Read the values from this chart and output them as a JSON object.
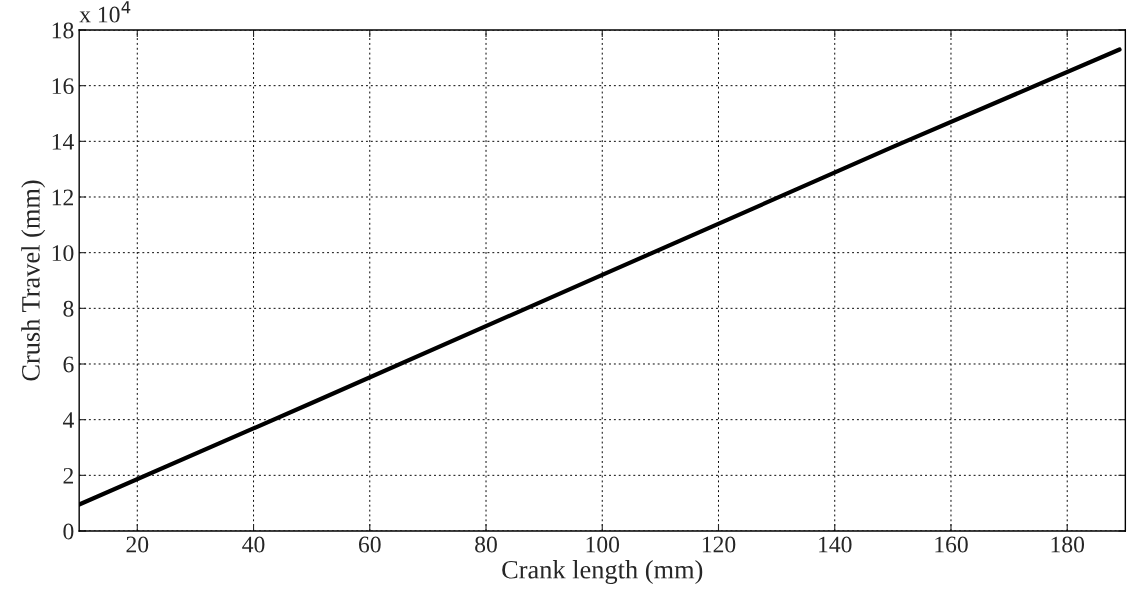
{
  "chart_data": {
    "type": "line",
    "xlabel": "Crank length (mm)",
    "ylabel": "Crush Travel (mm)",
    "annotations": [
      "x 10$^{4}$"
    ],
    "x": [
      10,
      50,
      100,
      150,
      189
    ],
    "series": [
      {
        "color": "#000000",
        "values": [
          0.95,
          4.6,
          9.2,
          13.8,
          17.3
        ]
      }
    ],
    "xlim": [
      10,
      190
    ],
    "ylim": [
      0,
      18
    ],
    "xticks": [
      20,
      40,
      60,
      80,
      100,
      120,
      140,
      160,
      180
    ],
    "yticks": [
      0,
      2,
      4,
      6,
      8,
      10,
      12,
      14,
      16,
      18
    ],
    "grid": true,
    "line_style": "solid",
    "marker": "none"
  }
}
